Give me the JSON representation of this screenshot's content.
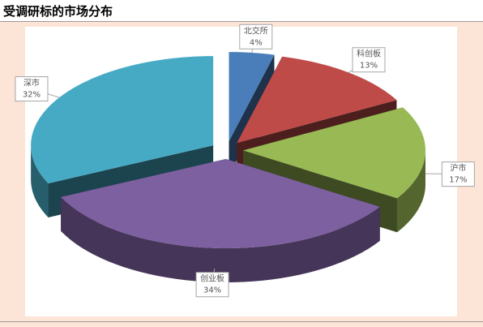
{
  "title": "受调研标的市场分布",
  "chart_data": {
    "type": "pie",
    "categories": [
      "北交所",
      "科创板",
      "沪市",
      "创业板",
      "深市"
    ],
    "values": [
      4,
      13,
      17,
      34,
      32
    ],
    "value_labels": [
      "4%",
      "13%",
      "17%",
      "34%",
      "32%"
    ],
    "colors": [
      "#4a7ebb",
      "#be4b48",
      "#98b954",
      "#7d60a0",
      "#46aac5"
    ]
  }
}
